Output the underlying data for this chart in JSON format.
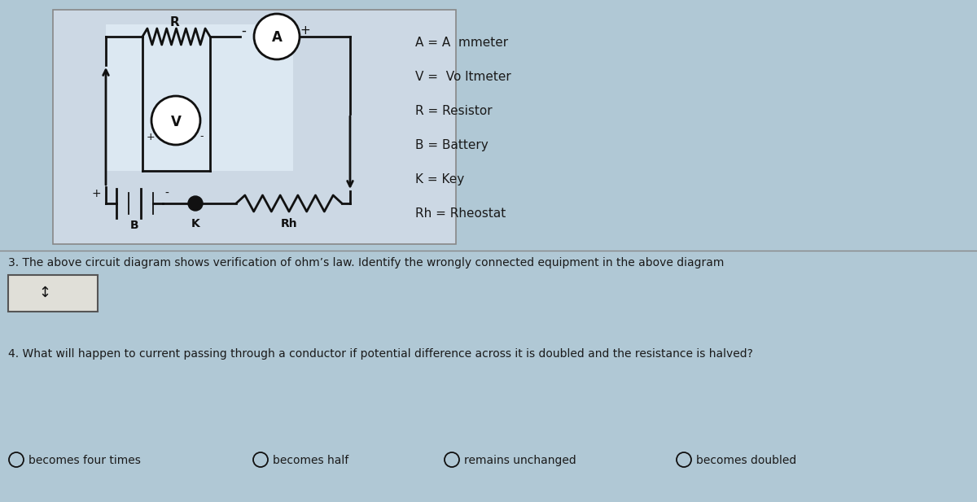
{
  "bg_color": "#b0c8d5",
  "circuit_panel_color": "#cddce6",
  "circuit_inner_color": "#d8e4ee",
  "legend_items": [
    "A = A  mmeter",
    "V =  Vo ltmeter",
    "R = Resistor",
    "B = Battery",
    "K = Key",
    "Rh = Rheostat"
  ],
  "q3_text": "3. The above circuit diagram shows verification of ohm’s law. Identify the wrongly connected equipment in the above diagram",
  "q4_text": "4. What will happen to current passing through a conductor if potential difference across it is doubled and the resistance is halved?",
  "options": [
    "becomes four times",
    "becomes half",
    "remains unchanged",
    "becomes doubled"
  ],
  "font_color": "#1a1a1a",
  "line_color": "#222222",
  "circuit_line_color": "#111111"
}
